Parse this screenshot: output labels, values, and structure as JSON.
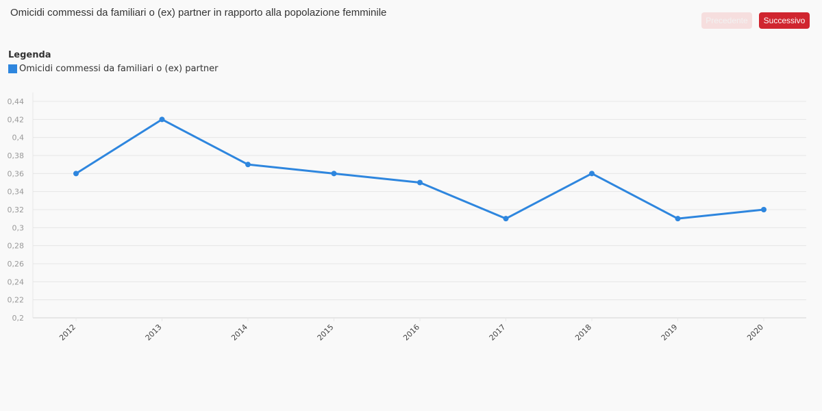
{
  "header": {
    "title": "Omicidi commessi da familiari o (ex) partner in rapporto alla popolazione femminile",
    "prev_label": "Precedente",
    "next_label": "Successivo"
  },
  "legend": {
    "title": "Legenda"
  },
  "colors": {
    "series": "#2e86de",
    "grid": "#e6e6e6",
    "accent": "#d0252f"
  },
  "chart_data": {
    "type": "line",
    "title": "",
    "xlabel": "",
    "ylabel": "",
    "categories": [
      "2012",
      "2013",
      "2014",
      "2015",
      "2016",
      "2017",
      "2018",
      "2019",
      "2020"
    ],
    "series": [
      {
        "name": "Omicidi commessi da familiari o (ex) partner",
        "values": [
          0.36,
          0.42,
          0.37,
          0.36,
          0.35,
          0.31,
          0.36,
          0.31,
          0.32
        ]
      }
    ],
    "ylim": [
      0.2,
      0.44
    ],
    "yticks": [
      "0,2",
      "0,22",
      "0,24",
      "0,26",
      "0,28",
      "0,3",
      "0,32",
      "0,34",
      "0,36",
      "0,38",
      "0,4",
      "0,42",
      "0,44"
    ],
    "grid": true,
    "legend_position": "top-left"
  }
}
